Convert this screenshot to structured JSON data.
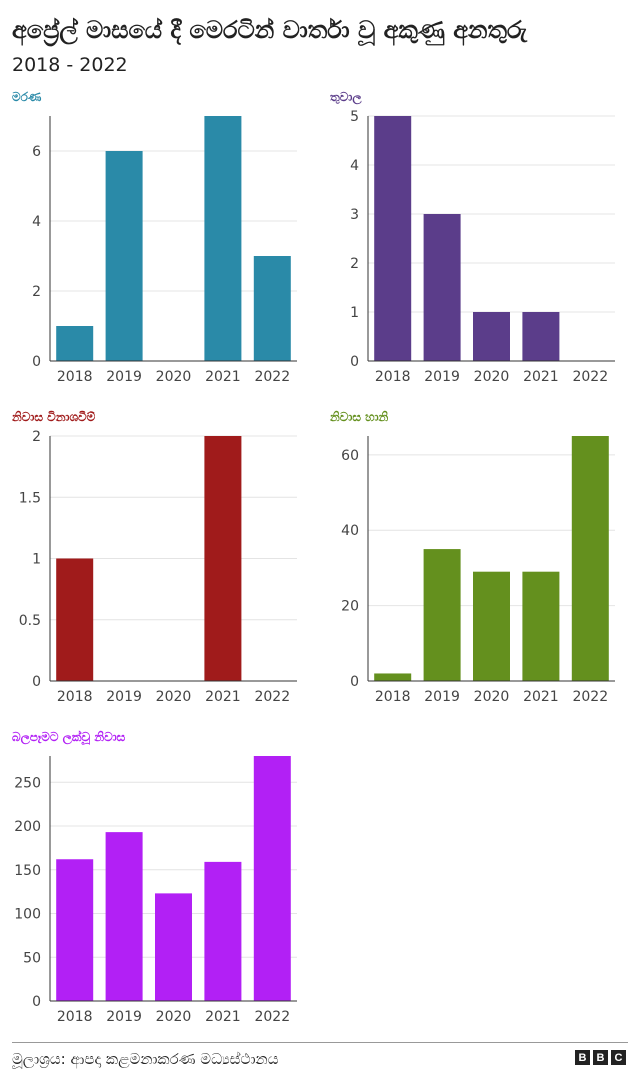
{
  "header": {
    "title": "අප්‍රේල් මාසයේ දී මෙරටින් වාර්තා වූ අකුණු අනතුරු",
    "subtitle": "2018  -  2022"
  },
  "footer": {
    "source": "මූලාශ්‍රය: ආපදා කළමනාකරණ මධ්‍යස්ථානය",
    "logo": [
      "B",
      "B",
      "C"
    ]
  },
  "chart_data": [
    {
      "type": "bar",
      "title": "මරණ",
      "color": "#2a8aa8",
      "categories": [
        "2018",
        "2019",
        "2020",
        "2021",
        "2022"
      ],
      "values": [
        1,
        6,
        0,
        7,
        3
      ],
      "yticks": [
        "0",
        "2",
        "4",
        "6"
      ],
      "ylim": [
        0,
        7
      ]
    },
    {
      "type": "bar",
      "title": "තුවාල",
      "color": "#5b3d8a",
      "categories": [
        "2018",
        "2019",
        "2020",
        "2021",
        "2022"
      ],
      "values": [
        5,
        3,
        1,
        1,
        0
      ],
      "yticks": [
        "0",
        "1",
        "2",
        "3",
        "4",
        "5"
      ],
      "ylim": [
        0,
        5
      ]
    },
    {
      "type": "bar",
      "title": "නිවාස විනාශවීම්",
      "color": "#a01b1b",
      "categories": [
        "2018",
        "2019",
        "2020",
        "2021",
        "2022"
      ],
      "values": [
        1,
        0,
        0,
        2,
        0
      ],
      "yticks": [
        "0",
        "0.5",
        "1",
        "1.5",
        "2"
      ],
      "ylim": [
        0,
        2
      ]
    },
    {
      "type": "bar",
      "title": "නිවාස හානි",
      "color": "#64901e",
      "categories": [
        "2018",
        "2019",
        "2020",
        "2021",
        "2022"
      ],
      "values": [
        2,
        35,
        29,
        29,
        65
      ],
      "yticks": [
        "0",
        "20",
        "40",
        "60"
      ],
      "ylim": [
        0,
        65
      ]
    },
    {
      "type": "bar",
      "title": "බලපෑමට ලක්වූ නිවාස",
      "color": "#b220f5",
      "categories": [
        "2018",
        "2019",
        "2020",
        "2021",
        "2022"
      ],
      "values": [
        162,
        193,
        123,
        159,
        280
      ],
      "yticks": [
        "0",
        "50",
        "100",
        "150",
        "200",
        "250"
      ],
      "ylim": [
        0,
        280
      ]
    }
  ]
}
